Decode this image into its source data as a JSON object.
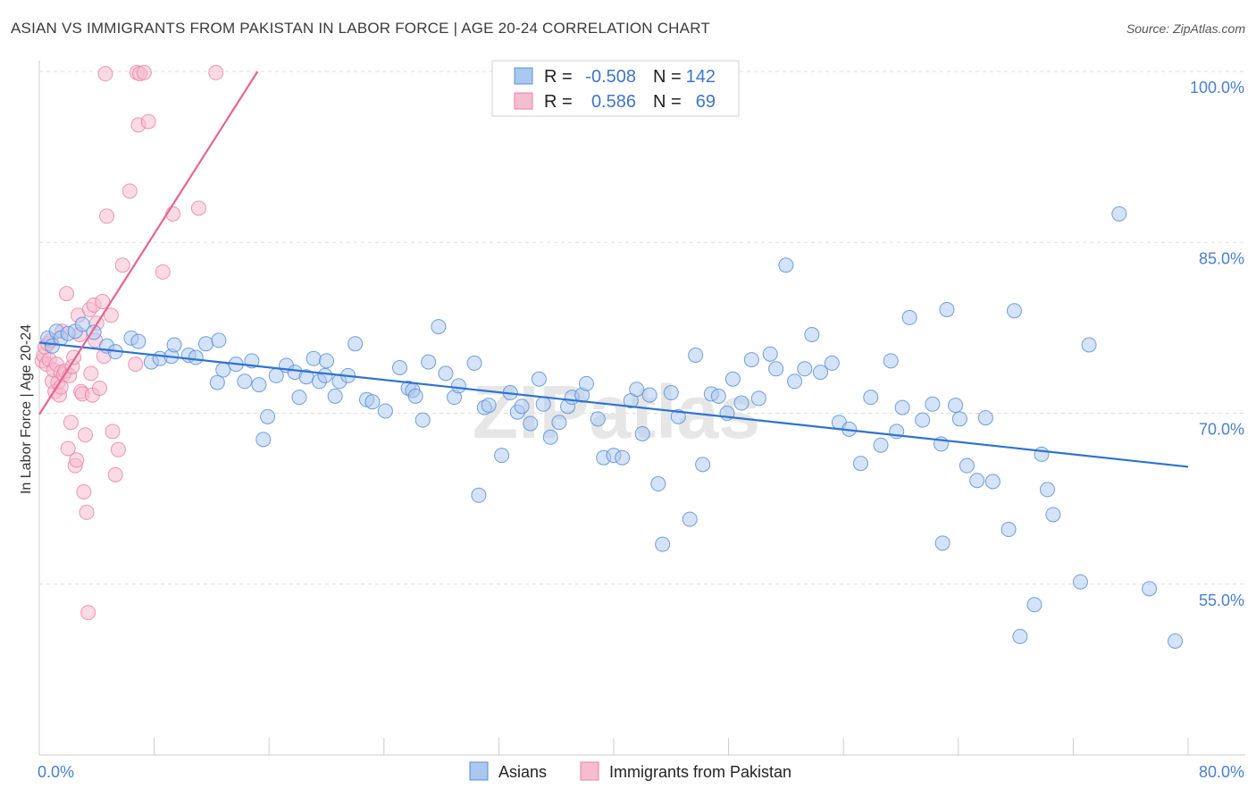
{
  "title": "ASIAN VS IMMIGRANTS FROM PAKISTAN IN LABOR FORCE | AGE 20-24 CORRELATION CHART",
  "source": "Source: ZipAtlas.com",
  "watermark": "ZIPatlas",
  "colors": {
    "asian_fill": "#a9c7ef",
    "asian_stroke": "#5b8fd8",
    "asian_line": "#2d72d2",
    "pakistan_fill": "#f6bcd0",
    "pakistan_stroke": "#e97fa2",
    "pakistan_line": "#e8638f",
    "tick_label": "#4a7fd0",
    "grid": "#dddddd"
  },
  "legend": {
    "rows": [
      {
        "r_label": "R =",
        "r_value": "-0.508",
        "n_label": "N =",
        "n_value": "142"
      },
      {
        "r_label": "R =",
        "r_value": "0.586",
        "n_label": "N =",
        "n_value": "69"
      }
    ]
  },
  "bottom_legend": [
    "Asians",
    "Immigrants from Pakistan"
  ],
  "chart_data": {
    "type": "scatter",
    "ylabel": "In Labor Force | Age 20-24",
    "xlabel": "",
    "x_ticks": [
      "0.0%",
      "80.0%"
    ],
    "y_ticks": [
      "100.0%",
      "85.0%",
      "70.0%",
      "55.0%"
    ],
    "y_tick_values": [
      100,
      85,
      70,
      55
    ],
    "xlim": [
      0,
      80
    ],
    "ylim": [
      40,
      100
    ],
    "grid": true,
    "series": [
      {
        "name": "Asians",
        "trend": [
          [
            0,
            76.2
          ],
          [
            80,
            65.3
          ]
        ],
        "points": [
          [
            0.6,
            76.6
          ],
          [
            0.9,
            75.9
          ],
          [
            1.2,
            77.2
          ],
          [
            1.5,
            76.6
          ],
          [
            2.0,
            77.0
          ],
          [
            2.5,
            77.2
          ],
          [
            3.0,
            77.8
          ],
          [
            3.8,
            77.1
          ],
          [
            4.7,
            75.9
          ],
          [
            5.3,
            75.4
          ],
          [
            6.4,
            76.6
          ],
          [
            6.9,
            76.3
          ],
          [
            7.8,
            74.5
          ],
          [
            8.4,
            74.8
          ],
          [
            9.2,
            75.0
          ],
          [
            9.4,
            76.0
          ],
          [
            10.4,
            75.1
          ],
          [
            10.9,
            74.9
          ],
          [
            11.6,
            76.1
          ],
          [
            12.4,
            72.7
          ],
          [
            12.5,
            76.4
          ],
          [
            12.8,
            73.8
          ],
          [
            13.7,
            74.3
          ],
          [
            14.3,
            72.8
          ],
          [
            14.8,
            74.6
          ],
          [
            15.3,
            72.5
          ],
          [
            15.6,
            67.7
          ],
          [
            15.9,
            69.7
          ],
          [
            16.5,
            73.3
          ],
          [
            17.2,
            74.2
          ],
          [
            17.8,
            73.6
          ],
          [
            18.1,
            71.4
          ],
          [
            18.6,
            73.2
          ],
          [
            19.1,
            74.8
          ],
          [
            19.5,
            72.8
          ],
          [
            19.9,
            73.3
          ],
          [
            20.0,
            74.6
          ],
          [
            20.6,
            71.5
          ],
          [
            20.9,
            72.8
          ],
          [
            21.5,
            73.3
          ],
          [
            22.0,
            76.1
          ],
          [
            22.8,
            71.2
          ],
          [
            23.2,
            71.0
          ],
          [
            24.1,
            70.2
          ],
          [
            25.1,
            74.0
          ],
          [
            25.7,
            72.2
          ],
          [
            26.0,
            72.0
          ],
          [
            26.2,
            71.5
          ],
          [
            26.7,
            69.4
          ],
          [
            27.1,
            74.5
          ],
          [
            27.8,
            77.6
          ],
          [
            28.3,
            73.5
          ],
          [
            28.9,
            71.4
          ],
          [
            29.2,
            72.4
          ],
          [
            30.3,
            74.4
          ],
          [
            30.6,
            62.8
          ],
          [
            31.0,
            70.5
          ],
          [
            31.3,
            70.7
          ],
          [
            32.2,
            66.3
          ],
          [
            32.8,
            71.8
          ],
          [
            33.3,
            70.1
          ],
          [
            33.6,
            70.6
          ],
          [
            34.2,
            69.1
          ],
          [
            34.8,
            73.0
          ],
          [
            35.1,
            70.8
          ],
          [
            35.6,
            67.9
          ],
          [
            36.2,
            69.2
          ],
          [
            36.8,
            70.6
          ],
          [
            37.1,
            71.4
          ],
          [
            37.8,
            71.6
          ],
          [
            38.1,
            72.6
          ],
          [
            38.9,
            69.5
          ],
          [
            39.3,
            66.1
          ],
          [
            40.0,
            66.3
          ],
          [
            40.6,
            66.1
          ],
          [
            41.2,
            71.1
          ],
          [
            41.6,
            72.1
          ],
          [
            42.0,
            68.2
          ],
          [
            42.5,
            71.6
          ],
          [
            43.1,
            63.8
          ],
          [
            43.4,
            58.5
          ],
          [
            44.0,
            71.8
          ],
          [
            44.5,
            69.7
          ],
          [
            45.3,
            60.7
          ],
          [
            45.7,
            75.1
          ],
          [
            46.2,
            65.5
          ],
          [
            46.8,
            71.7
          ],
          [
            47.3,
            71.5
          ],
          [
            47.9,
            70.0
          ],
          [
            48.3,
            73.0
          ],
          [
            48.9,
            70.9
          ],
          [
            49.6,
            74.7
          ],
          [
            50.1,
            71.3
          ],
          [
            50.9,
            75.2
          ],
          [
            51.3,
            73.9
          ],
          [
            52.0,
            83.0
          ],
          [
            52.6,
            72.8
          ],
          [
            53.3,
            73.9
          ],
          [
            53.8,
            76.9
          ],
          [
            54.4,
            73.6
          ],
          [
            55.2,
            74.4
          ],
          [
            55.7,
            69.2
          ],
          [
            56.4,
            68.6
          ],
          [
            57.2,
            65.6
          ],
          [
            57.9,
            71.4
          ],
          [
            58.6,
            67.2
          ],
          [
            59.3,
            74.6
          ],
          [
            59.7,
            68.4
          ],
          [
            60.1,
            70.5
          ],
          [
            60.6,
            78.4
          ],
          [
            61.5,
            69.4
          ],
          [
            62.2,
            70.8
          ],
          [
            62.8,
            67.3
          ],
          [
            62.9,
            58.6
          ],
          [
            63.2,
            79.1
          ],
          [
            63.8,
            70.7
          ],
          [
            64.1,
            69.5
          ],
          [
            64.6,
            65.4
          ],
          [
            65.3,
            64.1
          ],
          [
            65.9,
            69.6
          ],
          [
            66.4,
            64.0
          ],
          [
            67.5,
            59.8
          ],
          [
            67.9,
            79.0
          ],
          [
            68.3,
            50.4
          ],
          [
            69.3,
            53.2
          ],
          [
            69.8,
            66.4
          ],
          [
            70.2,
            63.3
          ],
          [
            70.6,
            61.1
          ],
          [
            72.5,
            55.2
          ],
          [
            73.1,
            76.0
          ],
          [
            75.2,
            87.5
          ],
          [
            77.3,
            54.6
          ],
          [
            79.1,
            50.0
          ]
        ]
      },
      {
        "name": "Immigrants from Pakistan",
        "trend": [
          [
            0,
            69.9
          ],
          [
            15.2,
            100.0
          ]
        ],
        "points": [
          [
            0.2,
            74.6
          ],
          [
            0.3,
            75.1
          ],
          [
            0.4,
            75.8
          ],
          [
            0.5,
            74.3
          ],
          [
            0.6,
            76.1
          ],
          [
            0.7,
            74.7
          ],
          [
            0.8,
            76.4
          ],
          [
            0.9,
            72.8
          ],
          [
            1.0,
            73.8
          ],
          [
            1.1,
            71.9
          ],
          [
            1.2,
            74.3
          ],
          [
            1.3,
            72.7
          ],
          [
            1.4,
            71.6
          ],
          [
            1.5,
            72.3
          ],
          [
            1.5,
            73.6
          ],
          [
            1.6,
            77.2
          ],
          [
            1.7,
            73.4
          ],
          [
            1.8,
            73.7
          ],
          [
            1.9,
            80.5
          ],
          [
            2.0,
            66.9
          ],
          [
            2.1,
            73.3
          ],
          [
            2.2,
            69.2
          ],
          [
            2.3,
            74.1
          ],
          [
            2.4,
            74.9
          ],
          [
            2.5,
            65.4
          ],
          [
            2.6,
            65.9
          ],
          [
            2.7,
            78.6
          ],
          [
            2.8,
            76.9
          ],
          [
            2.9,
            71.9
          ],
          [
            3.0,
            71.7
          ],
          [
            3.1,
            63.1
          ],
          [
            3.2,
            68.1
          ],
          [
            3.3,
            61.3
          ],
          [
            3.4,
            52.5
          ],
          [
            3.5,
            79.1
          ],
          [
            3.6,
            73.5
          ],
          [
            3.7,
            71.6
          ],
          [
            3.8,
            79.5
          ],
          [
            3.9,
            76.4
          ],
          [
            4.0,
            77.9
          ],
          [
            4.2,
            72.2
          ],
          [
            4.4,
            79.8
          ],
          [
            4.5,
            75.0
          ],
          [
            4.6,
            99.8
          ],
          [
            4.7,
            87.3
          ],
          [
            5.0,
            78.6
          ],
          [
            5.1,
            68.4
          ],
          [
            5.3,
            64.6
          ],
          [
            5.5,
            66.8
          ],
          [
            5.8,
            83.0
          ],
          [
            6.3,
            89.5
          ],
          [
            6.7,
            74.3
          ],
          [
            6.8,
            99.9
          ],
          [
            6.9,
            95.3
          ],
          [
            7.0,
            99.8
          ],
          [
            7.3,
            99.9
          ],
          [
            7.6,
            95.6
          ],
          [
            8.6,
            82.4
          ],
          [
            9.3,
            87.5
          ],
          [
            11.1,
            88.0
          ],
          [
            12.3,
            99.9
          ]
        ]
      }
    ]
  }
}
